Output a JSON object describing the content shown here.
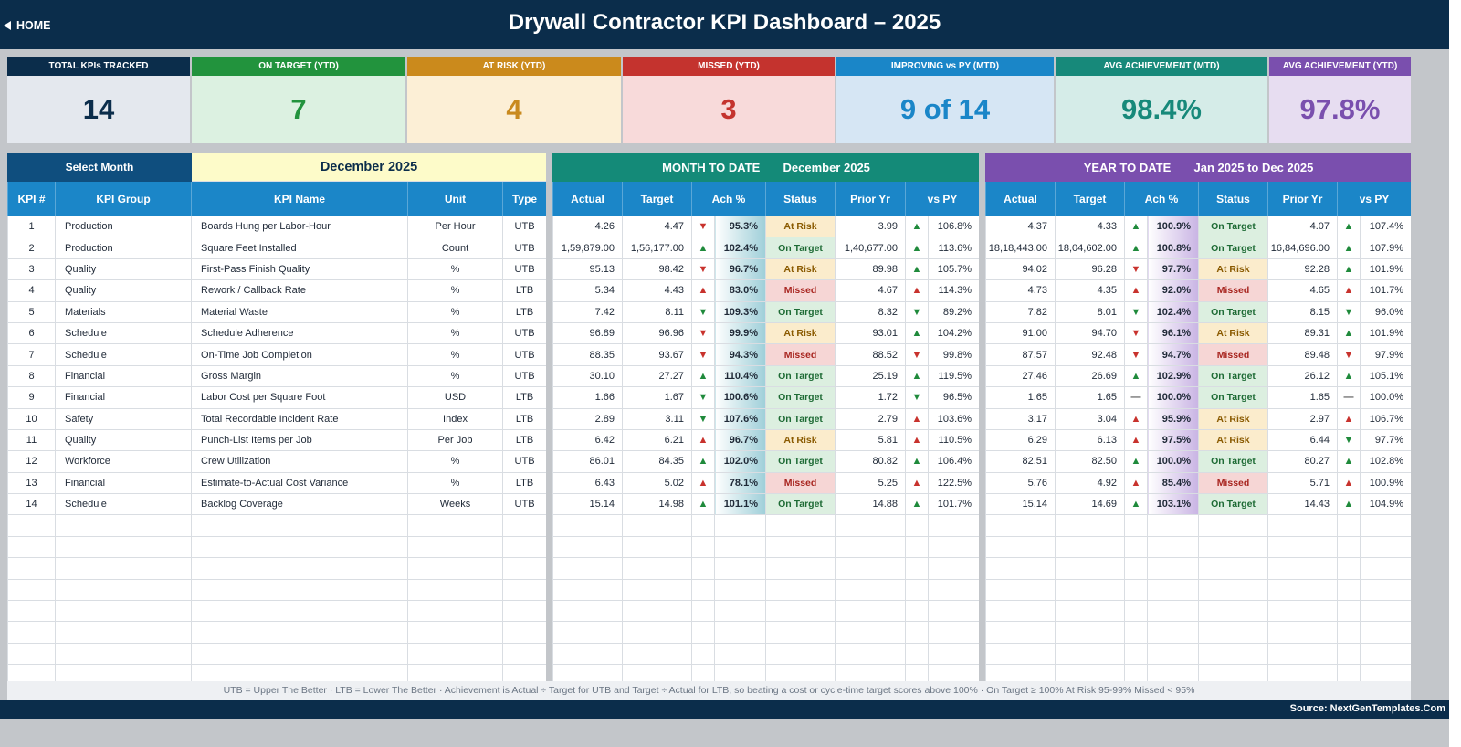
{
  "header": {
    "home_label": "HOME",
    "title": "Drywall Contractor KPI Dashboard   –   2025"
  },
  "cards": [
    {
      "label": "TOTAL KPIs TRACKED",
      "value": "14",
      "head_color": "#0b2d4b",
      "bg_color": "#e4e8ee",
      "value_color": "#0b2d4b"
    },
    {
      "label": "ON TARGET (YTD)",
      "value": "7",
      "head_color": "#22933d",
      "bg_color": "#dcf1e1",
      "value_color": "#22933d"
    },
    {
      "label": "AT RISK (YTD)",
      "value": "4",
      "head_color": "#cb8a1c",
      "bg_color": "#fcefd6",
      "value_color": "#c98a1e"
    },
    {
      "label": "MISSED (YTD)",
      "value": "3",
      "head_color": "#c4332e",
      "bg_color": "#f8dada",
      "value_color": "#c4332e"
    },
    {
      "label": "IMPROVING vs PY (MTD)",
      "value": "9 of 14",
      "head_color": "#1a86c8",
      "bg_color": "#d6e6f4",
      "value_color": "#1a86c8"
    },
    {
      "label": "AVG ACHIEVEMENT (MTD)",
      "value": "98.4%",
      "head_color": "#17897a",
      "bg_color": "#d5ece8",
      "value_color": "#17897a"
    },
    {
      "label": "AVG ACHIEVEMENT (YTD)",
      "value": "97.8%",
      "head_color": "#7a4fae",
      "bg_color": "#e7ddf1",
      "value_color": "#7a4fae"
    }
  ],
  "selector": {
    "label": "Select Month",
    "value": "December 2025"
  },
  "mtd": {
    "label": "MONTH TO DATE",
    "period": "December 2025"
  },
  "ytd": {
    "label": "YEAR TO DATE",
    "from": "Jan 2025",
    "to_word": "to",
    "to": "Dec 2025"
  },
  "columns": {
    "left": [
      "KPI #",
      "KPI Group",
      "KPI Name",
      "Unit",
      "Type"
    ],
    "metrics": [
      "Actual",
      "Target",
      "Ach %",
      "Status",
      "Prior Yr",
      "vs PY"
    ]
  },
  "rows": [
    {
      "num": "1",
      "group": "Production",
      "name": "Boards Hung per Labor-Hour",
      "unit": "Per Hour",
      "type": "UTB",
      "mtd": {
        "actual": "4.26",
        "target": "4.47",
        "ach_dir": "down",
        "ach": "95.3%",
        "status": "At Risk",
        "prior": "3.99",
        "py_dir": "up",
        "vspy": "106.8%"
      },
      "ytd": {
        "actual": "4.37",
        "target": "4.33",
        "ach_dir": "up",
        "ach": "100.9%",
        "status": "On Target",
        "prior": "4.07",
        "py_dir": "up",
        "vspy": "107.4%"
      }
    },
    {
      "num": "2",
      "group": "Production",
      "name": "Square Feet Installed",
      "unit": "Count",
      "type": "UTB",
      "mtd": {
        "actual": "1,59,879.00",
        "target": "1,56,177.00",
        "ach_dir": "up",
        "ach": "102.4%",
        "status": "On Target",
        "prior": "1,40,677.00",
        "py_dir": "up",
        "vspy": "113.6%"
      },
      "ytd": {
        "actual": "18,18,443.00",
        "target": "18,04,602.00",
        "ach_dir": "up",
        "ach": "100.8%",
        "status": "On Target",
        "prior": "16,84,696.00",
        "py_dir": "up",
        "vspy": "107.9%"
      }
    },
    {
      "num": "3",
      "group": "Quality",
      "name": "First-Pass Finish Quality",
      "unit": "%",
      "type": "UTB",
      "mtd": {
        "actual": "95.13",
        "target": "98.42",
        "ach_dir": "down",
        "ach": "96.7%",
        "status": "At Risk",
        "prior": "89.98",
        "py_dir": "up",
        "vspy": "105.7%"
      },
      "ytd": {
        "actual": "94.02",
        "target": "96.28",
        "ach_dir": "down",
        "ach": "97.7%",
        "status": "At Risk",
        "prior": "92.28",
        "py_dir": "up",
        "vspy": "101.9%"
      }
    },
    {
      "num": "4",
      "group": "Quality",
      "name": "Rework / Callback Rate",
      "unit": "%",
      "type": "LTB",
      "mtd": {
        "actual": "5.34",
        "target": "4.43",
        "ach_dir": "up_red",
        "ach": "83.0%",
        "status": "Missed",
        "prior": "4.67",
        "py_dir": "up_red",
        "vspy": "114.3%"
      },
      "ytd": {
        "actual": "4.73",
        "target": "4.35",
        "ach_dir": "up_red",
        "ach": "92.0%",
        "status": "Missed",
        "prior": "4.65",
        "py_dir": "up_red",
        "vspy": "101.7%"
      }
    },
    {
      "num": "5",
      "group": "Materials",
      "name": "Material Waste",
      "unit": "%",
      "type": "LTB",
      "mtd": {
        "actual": "7.42",
        "target": "8.11",
        "ach_dir": "down_green",
        "ach": "109.3%",
        "status": "On Target",
        "prior": "8.32",
        "py_dir": "down_green",
        "vspy": "89.2%"
      },
      "ytd": {
        "actual": "7.82",
        "target": "8.01",
        "ach_dir": "down_green",
        "ach": "102.4%",
        "status": "On Target",
        "prior": "8.15",
        "py_dir": "down_green",
        "vspy": "96.0%"
      }
    },
    {
      "num": "6",
      "group": "Schedule",
      "name": "Schedule Adherence",
      "unit": "%",
      "type": "UTB",
      "mtd": {
        "actual": "96.89",
        "target": "96.96",
        "ach_dir": "down",
        "ach": "99.9%",
        "status": "At Risk",
        "prior": "93.01",
        "py_dir": "up",
        "vspy": "104.2%"
      },
      "ytd": {
        "actual": "91.00",
        "target": "94.70",
        "ach_dir": "down",
        "ach": "96.1%",
        "status": "At Risk",
        "prior": "89.31",
        "py_dir": "up",
        "vspy": "101.9%"
      }
    },
    {
      "num": "7",
      "group": "Schedule",
      "name": "On-Time Job Completion",
      "unit": "%",
      "type": "UTB",
      "mtd": {
        "actual": "88.35",
        "target": "93.67",
        "ach_dir": "down",
        "ach": "94.3%",
        "status": "Missed",
        "prior": "88.52",
        "py_dir": "down",
        "vspy": "99.8%"
      },
      "ytd": {
        "actual": "87.57",
        "target": "92.48",
        "ach_dir": "down",
        "ach": "94.7%",
        "status": "Missed",
        "prior": "89.48",
        "py_dir": "down",
        "vspy": "97.9%"
      }
    },
    {
      "num": "8",
      "group": "Financial",
      "name": "Gross Margin",
      "unit": "%",
      "type": "UTB",
      "mtd": {
        "actual": "30.10",
        "target": "27.27",
        "ach_dir": "up",
        "ach": "110.4%",
        "status": "On Target",
        "prior": "25.19",
        "py_dir": "up",
        "vspy": "119.5%"
      },
      "ytd": {
        "actual": "27.46",
        "target": "26.69",
        "ach_dir": "up",
        "ach": "102.9%",
        "status": "On Target",
        "prior": "26.12",
        "py_dir": "up",
        "vspy": "105.1%"
      }
    },
    {
      "num": "9",
      "group": "Financial",
      "name": "Labor Cost per Square Foot",
      "unit": "USD",
      "type": "LTB",
      "mtd": {
        "actual": "1.66",
        "target": "1.67",
        "ach_dir": "down_green",
        "ach": "100.6%",
        "status": "On Target",
        "prior": "1.72",
        "py_dir": "down_green",
        "vspy": "96.5%"
      },
      "ytd": {
        "actual": "1.65",
        "target": "1.65",
        "ach_dir": "flat",
        "ach": "100.0%",
        "status": "On Target",
        "prior": "1.65",
        "py_dir": "flat",
        "vspy": "100.0%"
      }
    },
    {
      "num": "10",
      "group": "Safety",
      "name": "Total Recordable Incident Rate",
      "unit": "Index",
      "type": "LTB",
      "mtd": {
        "actual": "2.89",
        "target": "3.11",
        "ach_dir": "down_green",
        "ach": "107.6%",
        "status": "On Target",
        "prior": "2.79",
        "py_dir": "up_red",
        "vspy": "103.6%"
      },
      "ytd": {
        "actual": "3.17",
        "target": "3.04",
        "ach_dir": "up_red",
        "ach": "95.9%",
        "status": "At Risk",
        "prior": "2.97",
        "py_dir": "up_red",
        "vspy": "106.7%"
      }
    },
    {
      "num": "11",
      "group": "Quality",
      "name": "Punch-List Items per Job",
      "unit": "Per Job",
      "type": "LTB",
      "mtd": {
        "actual": "6.42",
        "target": "6.21",
        "ach_dir": "up_red",
        "ach": "96.7%",
        "status": "At Risk",
        "prior": "5.81",
        "py_dir": "up_red",
        "vspy": "110.5%"
      },
      "ytd": {
        "actual": "6.29",
        "target": "6.13",
        "ach_dir": "up_red",
        "ach": "97.5%",
        "status": "At Risk",
        "prior": "6.44",
        "py_dir": "down_green",
        "vspy": "97.7%"
      }
    },
    {
      "num": "12",
      "group": "Workforce",
      "name": "Crew Utilization",
      "unit": "%",
      "type": "UTB",
      "mtd": {
        "actual": "86.01",
        "target": "84.35",
        "ach_dir": "up",
        "ach": "102.0%",
        "status": "On Target",
        "prior": "80.82",
        "py_dir": "up",
        "vspy": "106.4%"
      },
      "ytd": {
        "actual": "82.51",
        "target": "82.50",
        "ach_dir": "up",
        "ach": "100.0%",
        "status": "On Target",
        "prior": "80.27",
        "py_dir": "up",
        "vspy": "102.8%"
      }
    },
    {
      "num": "13",
      "group": "Financial",
      "name": "Estimate-to-Actual Cost Variance",
      "unit": "%",
      "type": "LTB",
      "mtd": {
        "actual": "6.43",
        "target": "5.02",
        "ach_dir": "up_red",
        "ach": "78.1%",
        "status": "Missed",
        "prior": "5.25",
        "py_dir": "up_red",
        "vspy": "122.5%"
      },
      "ytd": {
        "actual": "5.76",
        "target": "4.92",
        "ach_dir": "up_red",
        "ach": "85.4%",
        "status": "Missed",
        "prior": "5.71",
        "py_dir": "up_red",
        "vspy": "100.9%"
      }
    },
    {
      "num": "14",
      "group": "Schedule",
      "name": "Backlog Coverage",
      "unit": "Weeks",
      "type": "UTB",
      "mtd": {
        "actual": "15.14",
        "target": "14.98",
        "ach_dir": "up",
        "ach": "101.1%",
        "status": "On Target",
        "prior": "14.88",
        "py_dir": "up",
        "vspy": "101.7%"
      },
      "ytd": {
        "actual": "15.14",
        "target": "14.69",
        "ach_dir": "up",
        "ach": "103.1%",
        "status": "On Target",
        "prior": "14.43",
        "py_dir": "up",
        "vspy": "104.9%"
      }
    }
  ],
  "legend": "UTB = Upper The Better   ·   LTB = Lower The Better   ·   Achievement is Actual ÷ Target for UTB and Target ÷ Actual for LTB, so beating a cost or cycle-time target scores above 100%   ·   On Target ≥ 100%    At Risk 95-99%    Missed < 95%",
  "source": "Source: NextGenTemplates.Com",
  "icons": {
    "home": "triangle-left-icon",
    "up": "triangle-up-icon",
    "down": "triangle-down-icon",
    "flat": "dash-icon"
  },
  "colors": {
    "header_bg": "#0b2d4b",
    "mtd_header": "#148a78",
    "ytd_header": "#7a4fae",
    "col_header": "#1b86c8",
    "selector_bg": "#fdfbc9",
    "up": "#1f8a3b",
    "down": "#c8322d"
  }
}
